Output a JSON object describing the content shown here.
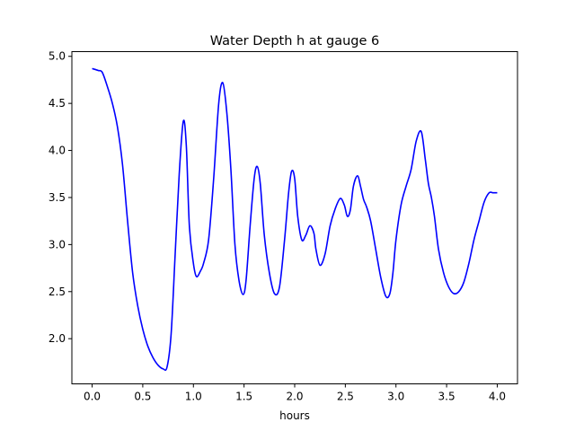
{
  "chart_data": {
    "type": "line",
    "title": "Water Depth h at gauge 6",
    "xlabel": "hours",
    "ylabel": "",
    "xlim": [
      -0.2,
      4.2
    ],
    "ylim": [
      1.52,
      5.05
    ],
    "xticks": [
      0.0,
      0.5,
      1.0,
      1.5,
      2.0,
      2.5,
      3.0,
      3.5,
      4.0
    ],
    "xtick_labels": [
      "0.0",
      "0.5",
      "1.0",
      "1.5",
      "2.0",
      "2.5",
      "3.0",
      "3.5",
      "4.0"
    ],
    "yticks": [
      2.0,
      2.5,
      3.0,
      3.5,
      4.0,
      4.5,
      5.0
    ],
    "ytick_labels": [
      "2.0",
      "2.5",
      "3.0",
      "3.5",
      "4.0",
      "4.5",
      "5.0"
    ],
    "grid": false,
    "series": [
      {
        "color": "#0000ff",
        "x": [
          0.0,
          0.06,
          0.1,
          0.15,
          0.2,
          0.25,
          0.3,
          0.35,
          0.4,
          0.45,
          0.5,
          0.55,
          0.6,
          0.65,
          0.7,
          0.74,
          0.78,
          0.82,
          0.86,
          0.9,
          0.93,
          0.96,
          1.0,
          1.03,
          1.07,
          1.1,
          1.15,
          1.2,
          1.25,
          1.29,
          1.33,
          1.37,
          1.41,
          1.45,
          1.49,
          1.52,
          1.56,
          1.6,
          1.63,
          1.66,
          1.7,
          1.75,
          1.8,
          1.85,
          1.9,
          1.94,
          1.97,
          2.0,
          2.03,
          2.07,
          2.11,
          2.15,
          2.19,
          2.21,
          2.25,
          2.3,
          2.35,
          2.4,
          2.45,
          2.49,
          2.52,
          2.55,
          2.58,
          2.62,
          2.65,
          2.68,
          2.71,
          2.75,
          2.8,
          2.85,
          2.9,
          2.94,
          2.97,
          3.0,
          3.05,
          3.1,
          3.15,
          3.2,
          3.25,
          3.29,
          3.32,
          3.35,
          3.38,
          3.42,
          3.47,
          3.52,
          3.57,
          3.62,
          3.67,
          3.72,
          3.77,
          3.82,
          3.87,
          3.92,
          3.96,
          4.0
        ],
        "y": [
          4.87,
          4.85,
          4.83,
          4.68,
          4.5,
          4.25,
          3.85,
          3.25,
          2.7,
          2.35,
          2.1,
          1.92,
          1.8,
          1.72,
          1.68,
          1.7,
          2.05,
          2.9,
          3.75,
          4.31,
          4.05,
          3.2,
          2.8,
          2.66,
          2.72,
          2.8,
          3.05,
          3.7,
          4.5,
          4.72,
          4.4,
          3.8,
          3.0,
          2.62,
          2.47,
          2.62,
          3.2,
          3.7,
          3.83,
          3.65,
          3.1,
          2.7,
          2.48,
          2.55,
          3.05,
          3.55,
          3.78,
          3.7,
          3.3,
          3.05,
          3.1,
          3.2,
          3.12,
          2.95,
          2.78,
          2.9,
          3.2,
          3.38,
          3.49,
          3.42,
          3.3,
          3.37,
          3.62,
          3.73,
          3.62,
          3.48,
          3.4,
          3.25,
          2.95,
          2.65,
          2.45,
          2.48,
          2.7,
          3.05,
          3.42,
          3.62,
          3.8,
          4.1,
          4.2,
          3.9,
          3.65,
          3.5,
          3.3,
          2.95,
          2.7,
          2.55,
          2.48,
          2.5,
          2.6,
          2.8,
          3.05,
          3.25,
          3.45,
          3.55,
          3.55,
          3.55
        ]
      }
    ]
  }
}
